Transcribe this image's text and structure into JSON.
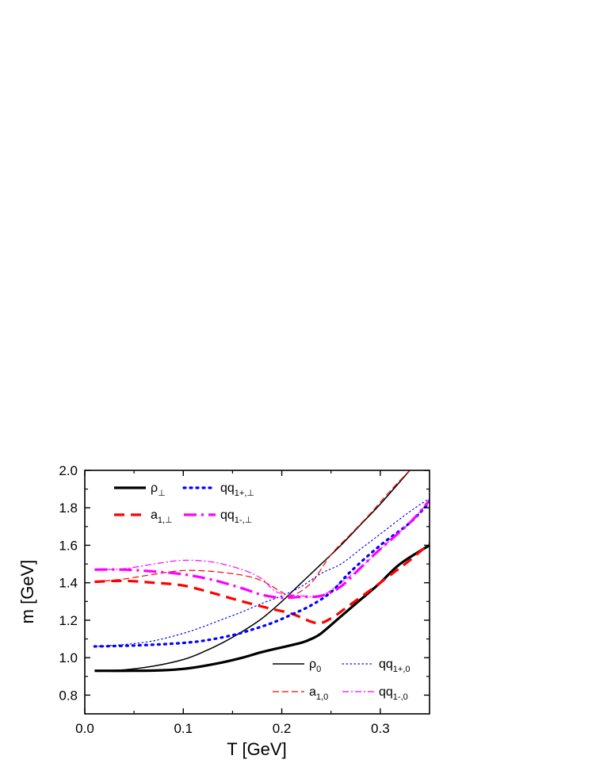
{
  "chart_data": {
    "type": "line",
    "xlabel": "T [GeV]",
    "ylabel": "m [GeV]",
    "xlim": [
      0.0,
      0.35
    ],
    "ylim": [
      0.7,
      2.0
    ],
    "x_ticks": [
      "0.0",
      "0.1",
      "0.2",
      "0.3"
    ],
    "x_tick_values": [
      0.0,
      0.1,
      0.2,
      0.3
    ],
    "y_ticks": [
      "0.8",
      "1.0",
      "1.2",
      "1.4",
      "1.6",
      "1.8",
      "2.0"
    ],
    "y_tick_values": [
      0.8,
      1.0,
      1.2,
      1.4,
      1.6,
      1.8,
      2.0
    ],
    "grid": false,
    "series": [
      {
        "legend_main": "ρ",
        "legend_sub": "⊥",
        "group": "perp",
        "color": "#000000",
        "width": 3.2,
        "dash": "",
        "points": [
          [
            0.01,
            0.93
          ],
          [
            0.05,
            0.93
          ],
          [
            0.08,
            0.933
          ],
          [
            0.1,
            0.94
          ],
          [
            0.12,
            0.955
          ],
          [
            0.14,
            0.975
          ],
          [
            0.16,
            1.0
          ],
          [
            0.18,
            1.03
          ],
          [
            0.2,
            1.055
          ],
          [
            0.22,
            1.08
          ],
          [
            0.23,
            1.1
          ],
          [
            0.24,
            1.13
          ],
          [
            0.26,
            1.22
          ],
          [
            0.28,
            1.31
          ],
          [
            0.3,
            1.4
          ],
          [
            0.32,
            1.5
          ],
          [
            0.35,
            1.6
          ]
        ]
      },
      {
        "legend_main": "a",
        "legend_sub": "1,⊥",
        "group": "perp",
        "color": "#ff0000",
        "width": 3.2,
        "dash": "13,8",
        "points": [
          [
            0.01,
            1.405
          ],
          [
            0.04,
            1.41
          ],
          [
            0.07,
            1.4
          ],
          [
            0.1,
            1.385
          ],
          [
            0.13,
            1.345
          ],
          [
            0.16,
            1.3
          ],
          [
            0.19,
            1.26
          ],
          [
            0.21,
            1.235
          ],
          [
            0.235,
            1.185
          ],
          [
            0.25,
            1.21
          ],
          [
            0.27,
            1.285
          ],
          [
            0.29,
            1.36
          ],
          [
            0.31,
            1.44
          ],
          [
            0.33,
            1.52
          ],
          [
            0.35,
            1.61
          ]
        ]
      },
      {
        "legend_main": "qq",
        "legend_sub": "1+,⊥",
        "group": "perp",
        "color": "#0000ff",
        "width": 3.2,
        "dash": "2,6",
        "points": [
          [
            0.01,
            1.06
          ],
          [
            0.05,
            1.065
          ],
          [
            0.09,
            1.075
          ],
          [
            0.12,
            1.09
          ],
          [
            0.15,
            1.12
          ],
          [
            0.17,
            1.15
          ],
          [
            0.19,
            1.185
          ],
          [
            0.21,
            1.23
          ],
          [
            0.23,
            1.28
          ],
          [
            0.25,
            1.35
          ],
          [
            0.27,
            1.46
          ],
          [
            0.3,
            1.6
          ],
          [
            0.33,
            1.72
          ],
          [
            0.35,
            1.83
          ]
        ]
      },
      {
        "legend_main": "qq",
        "legend_sub": "1-,⊥",
        "group": "perp",
        "color": "#ff00ff",
        "width": 3.2,
        "dash": "16,6,3,6",
        "points": [
          [
            0.01,
            1.47
          ],
          [
            0.04,
            1.47
          ],
          [
            0.07,
            1.46
          ],
          [
            0.1,
            1.445
          ],
          [
            0.13,
            1.415
          ],
          [
            0.16,
            1.37
          ],
          [
            0.18,
            1.335
          ],
          [
            0.2,
            1.32
          ],
          [
            0.22,
            1.325
          ],
          [
            0.24,
            1.33
          ],
          [
            0.26,
            1.38
          ],
          [
            0.28,
            1.48
          ],
          [
            0.3,
            1.58
          ],
          [
            0.33,
            1.72
          ],
          [
            0.35,
            1.84
          ]
        ]
      },
      {
        "legend_main": "ρ",
        "legend_sub": "0",
        "group": "zero",
        "color": "#000000",
        "width": 1.5,
        "dash": "",
        "points": [
          [
            0.01,
            0.93
          ],
          [
            0.04,
            0.935
          ],
          [
            0.07,
            0.955
          ],
          [
            0.1,
            0.99
          ],
          [
            0.12,
            1.03
          ],
          [
            0.14,
            1.08
          ],
          [
            0.16,
            1.14
          ],
          [
            0.18,
            1.21
          ],
          [
            0.2,
            1.3
          ],
          [
            0.22,
            1.4
          ],
          [
            0.24,
            1.5
          ],
          [
            0.26,
            1.6
          ],
          [
            0.28,
            1.71
          ],
          [
            0.3,
            1.82
          ],
          [
            0.33,
            2.0
          ]
        ]
      },
      {
        "legend_main": "a",
        "legend_sub": "1,0",
        "group": "zero",
        "color": "#ff0000",
        "width": 1.2,
        "dash": "8,4",
        "points": [
          [
            0.01,
            1.405
          ],
          [
            0.04,
            1.42
          ],
          [
            0.07,
            1.445
          ],
          [
            0.1,
            1.465
          ],
          [
            0.13,
            1.46
          ],
          [
            0.16,
            1.44
          ],
          [
            0.18,
            1.41
          ],
          [
            0.2,
            1.35
          ],
          [
            0.21,
            1.33
          ],
          [
            0.23,
            1.4
          ],
          [
            0.25,
            1.55
          ],
          [
            0.27,
            1.66
          ],
          [
            0.29,
            1.77
          ],
          [
            0.31,
            1.89
          ],
          [
            0.33,
            2.0
          ]
        ]
      },
      {
        "legend_main": "qq",
        "legend_sub": "1+,0",
        "group": "zero",
        "color": "#0000ff",
        "width": 1.2,
        "dash": "1.5,3.5",
        "points": [
          [
            0.01,
            1.06
          ],
          [
            0.04,
            1.07
          ],
          [
            0.07,
            1.09
          ],
          [
            0.1,
            1.13
          ],
          [
            0.12,
            1.165
          ],
          [
            0.14,
            1.205
          ],
          [
            0.16,
            1.245
          ],
          [
            0.18,
            1.29
          ],
          [
            0.2,
            1.33
          ],
          [
            0.22,
            1.38
          ],
          [
            0.24,
            1.45
          ],
          [
            0.26,
            1.5
          ],
          [
            0.28,
            1.58
          ],
          [
            0.3,
            1.66
          ],
          [
            0.33,
            1.78
          ],
          [
            0.35,
            1.85
          ]
        ]
      },
      {
        "legend_main": "qq",
        "legend_sub": "1-,0",
        "group": "zero",
        "color": "#ff00ff",
        "width": 1.2,
        "dash": "8,3,2,3",
        "points": [
          [
            0.01,
            1.47
          ],
          [
            0.04,
            1.475
          ],
          [
            0.07,
            1.5
          ],
          [
            0.1,
            1.52
          ],
          [
            0.13,
            1.51
          ],
          [
            0.16,
            1.47
          ],
          [
            0.18,
            1.42
          ],
          [
            0.195,
            1.35
          ],
          [
            0.22,
            1.33
          ],
          [
            0.24,
            1.33
          ],
          [
            0.26,
            1.4
          ],
          [
            0.28,
            1.48
          ],
          [
            0.3,
            1.58
          ],
          [
            0.33,
            1.72
          ],
          [
            0.35,
            1.84
          ]
        ]
      }
    ]
  }
}
